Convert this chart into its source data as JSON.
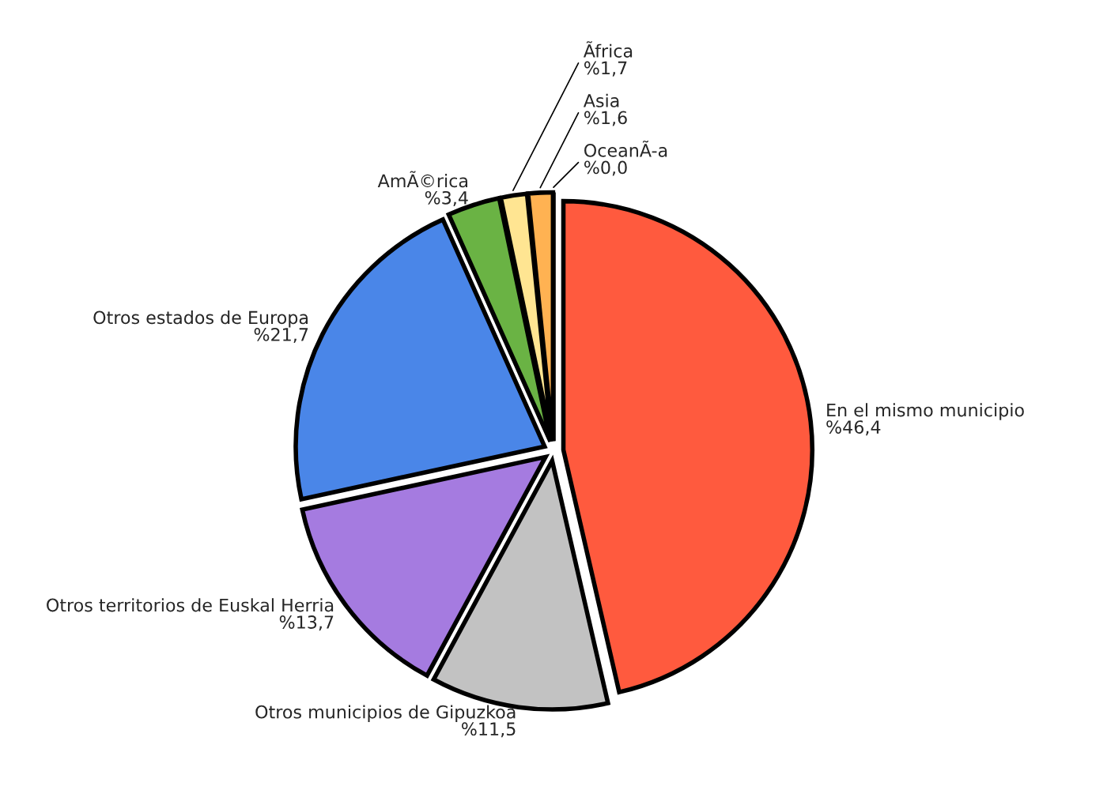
{
  "chart_data": {
    "type": "pie",
    "categories": [
      "En el mismo municipio",
      "Otros municipios de Gipuzkoa",
      "Otros territorios de Euskal Herria",
      "Otros estados de Europa",
      "AmÃ©rica",
      "Ãfrica",
      "Asia",
      "OceanÃ-a"
    ],
    "values": [
      46.4,
      11.5,
      13.7,
      21.7,
      3.4,
      1.7,
      1.6,
      0.0
    ],
    "value_labels": [
      "%46,4",
      "%11,5",
      "%13,7",
      "%21,7",
      "%3,4",
      "%1,7",
      "%1,6",
      "%0,0"
    ],
    "colors": [
      "#ff5a3e",
      "#c2c2c2",
      "#a57be0",
      "#4a86e8",
      "#6ab344",
      "#ffe592",
      "#ffb252",
      "#e06666"
    ],
    "legend": false
  }
}
